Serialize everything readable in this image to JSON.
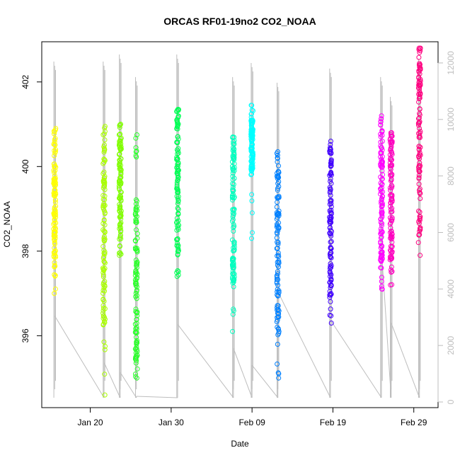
{
  "chart_data": {
    "type": "scatter",
    "title": "ORCAS RF01-19no2 CO2_NOAA",
    "xlabel": "Date",
    "ylabel": "CO2_NOAA",
    "xlim": [
      "2016-01-14",
      "2016-03-03"
    ],
    "ylim": [
      394.3,
      402.95
    ],
    "y_ticks": [
      396,
      398,
      400,
      402
    ],
    "x_ticks": [
      {
        "date": "2016-01-20",
        "label": "Jan 20"
      },
      {
        "date": "2016-01-30",
        "label": "Jan 30"
      },
      {
        "date": "2016-02-09",
        "label": "Feb 09"
      },
      {
        "date": "2016-02-19",
        "label": "Feb 19"
      },
      {
        "date": "2016-02-29",
        "label": "Feb 29"
      }
    ],
    "y2_ticks": [
      0,
      2000,
      4000,
      6000,
      8000,
      10000,
      12000
    ],
    "y2lim": [
      -200,
      12750
    ],
    "grid": false,
    "series": [
      {
        "date": "2016-01-15.6",
        "color": "#ffff00",
        "co2_min": 397.0,
        "co2_max": 400.9,
        "dense_min": 397.6,
        "dense_max": 400.6
      },
      {
        "date": "2016-01-21.7",
        "color": "#aaff00",
        "co2_min": 394.6,
        "co2_max": 400.95,
        "dense_min": 396.2,
        "dense_max": 400.5
      },
      {
        "date": "2016-01-23.7",
        "color": "#80ff00",
        "co2_min": 397.9,
        "co2_max": 401.0,
        "dense_min": 398.1,
        "dense_max": 400.7
      },
      {
        "date": "2016-01-25.7",
        "color": "#2aff2a",
        "co2_min": 395.0,
        "co2_max": 400.75,
        "dense_min": 395.4,
        "dense_max": 399.3
      },
      {
        "date": "2016-01-30.8",
        "color": "#00ff55",
        "co2_min": 397.4,
        "co2_max": 401.35,
        "dense_min": 397.9,
        "dense_max": 401.3
      },
      {
        "date": "2016-02-06.7",
        "color": "#00ffbf",
        "co2_min": 396.1,
        "co2_max": 400.7,
        "dense_min": 397.2,
        "dense_max": 400.5
      },
      {
        "date": "2016-02-09.0",
        "color": "#00ffff",
        "co2_min": 398.3,
        "co2_max": 401.45,
        "dense_min": 399.8,
        "dense_max": 401.1
      },
      {
        "date": "2016-02-12.2",
        "color": "#0080ff",
        "co2_min": 395.0,
        "co2_max": 400.35,
        "dense_min": 395.9,
        "dense_max": 400.0
      },
      {
        "date": "2016-02-18.7",
        "color": "#4000ff",
        "co2_min": 396.3,
        "co2_max": 400.6,
        "dense_min": 396.9,
        "dense_max": 400.4
      },
      {
        "date": "2016-02-25.0",
        "color": "#ff00ff",
        "co2_min": 397.1,
        "co2_max": 401.2,
        "dense_min": 397.6,
        "dense_max": 400.9
      },
      {
        "date": "2016-02-26.2",
        "color": "#ff00c0",
        "co2_min": 397.2,
        "co2_max": 400.8,
        "dense_min": 397.6,
        "dense_max": 400.7
      },
      {
        "date": "2016-02-29.7",
        "color": "#ff0080",
        "co2_min": 397.9,
        "co2_max": 402.8,
        "dense_min": 398.4,
        "dense_max": 402.5
      }
    ],
    "secondary_lines": [
      {
        "date": "2016-01-15.6",
        "y2_min": 150,
        "y2_max": 12050,
        "end_y2": 3050
      },
      {
        "date": "2016-01-21.7",
        "y2_min": 150,
        "y2_max": 12050,
        "end_y2": 1400
      },
      {
        "date": "2016-01-23.7",
        "y2_min": 150,
        "y2_max": 12300,
        "end_y2": 1050
      },
      {
        "date": "2016-01-25.7",
        "y2_min": 150,
        "y2_max": 11500,
        "end_y2": 200
      },
      {
        "date": "2016-01-30.8",
        "y2_min": 150,
        "y2_max": 12300,
        "end_y2": 2750
      },
      {
        "date": "2016-02-06.7",
        "y2_min": 150,
        "y2_max": 11500,
        "end_y2": 1900
      },
      {
        "date": "2016-02-09.0",
        "y2_min": 150,
        "y2_max": 12000,
        "end_y2": 1300
      },
      {
        "date": "2016-02-12.2",
        "y2_min": 150,
        "y2_max": 11300,
        "end_y2": 3900
      },
      {
        "date": "2016-02-18.7",
        "y2_min": 150,
        "y2_max": 11800,
        "end_y2": 2900
      },
      {
        "date": "2016-02-25.0",
        "y2_min": 150,
        "y2_max": 11500,
        "end_y2": 5400
      },
      {
        "date": "2016-02-26.2",
        "y2_min": 150,
        "y2_max": 10800,
        "end_y2": 2800
      },
      {
        "date": "2016-02-29.7",
        "y2_min": 150,
        "y2_max": 12150,
        "end_y2": 3200
      }
    ],
    "line_color": "#bdbdbd"
  }
}
